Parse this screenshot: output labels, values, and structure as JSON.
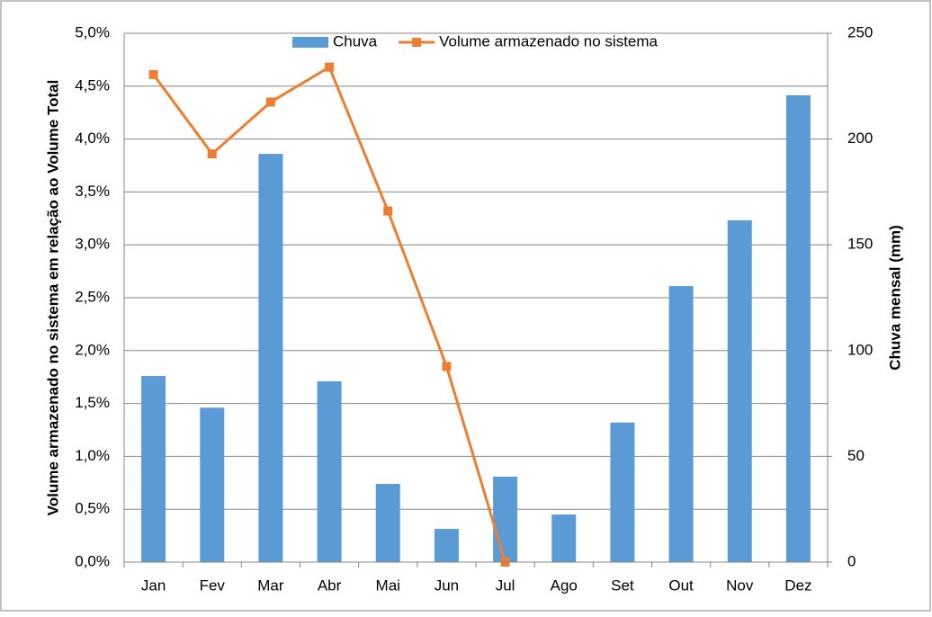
{
  "chart_data": {
    "type": "bar",
    "categories": [
      "Jan",
      "Fev",
      "Mar",
      "Abr",
      "Mai",
      "Jun",
      "Jul",
      "Ago",
      "Set",
      "Out",
      "Nov",
      "Dez"
    ],
    "series": [
      {
        "name": "Chuva",
        "color": "#5b9bd5",
        "type": "bar",
        "axis": "y2",
        "values": [
          88,
          73,
          193,
          85.5,
          37,
          15.7,
          40.4,
          22.5,
          66,
          130.5,
          161.6,
          220.7
        ]
      },
      {
        "name": "Volume armazenado no sistema",
        "color": "#ed7d31",
        "type": "line",
        "axis": "y",
        "values": [
          4.61,
          3.86,
          4.35,
          4.68,
          3.32,
          1.85,
          0,
          null,
          null,
          null,
          null,
          null
        ]
      }
    ],
    "ylabel": "Volume armazenado no sistema em relação ao Volume Total",
    "y2label": "Chuva mensal (mm)",
    "ylim": [
      0,
      5
    ],
    "yticks": [
      {
        "value": 0,
        "label": "0,0%"
      },
      {
        "value": 0.5,
        "label": "0,5%"
      },
      {
        "value": 1,
        "label": "1,0%"
      },
      {
        "value": 1.5,
        "label": "1,5%"
      },
      {
        "value": 2,
        "label": "2,0%"
      },
      {
        "value": 2.5,
        "label": "2,5%"
      },
      {
        "value": 3,
        "label": "3,0%"
      },
      {
        "value": 3.5,
        "label": "3,5%"
      },
      {
        "value": 4,
        "label": "4,0%"
      },
      {
        "value": 4.5,
        "label": "4,5%"
      },
      {
        "value": 5,
        "label": "5,0%"
      }
    ],
    "y2lim": [
      0,
      250
    ],
    "y2ticks": [
      0,
      50,
      100,
      150,
      200,
      250
    ],
    "grid": true,
    "legend": "top"
  }
}
